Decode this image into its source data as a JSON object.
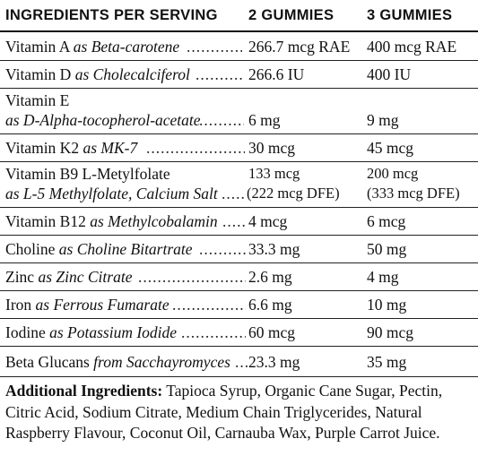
{
  "header": {
    "col1": "INGREDIENTS PER SERVING",
    "col2": "2 GUMMIES",
    "col3": "3 GUMMIES"
  },
  "rows": [
    {
      "name": "Vitamin A",
      "source": "as Beta-carotene",
      "v2": "266.7 mcg RAE",
      "v3": "400 mcg RAE"
    },
    {
      "name": "Vitamin D",
      "source": "as Cholecalciferol",
      "v2": "266.6 IU",
      "v3": "400 IU"
    },
    {
      "name": "Vitamin E",
      "source": "as D-Alpha-tocopherol-acetate",
      "v2": "6 mg",
      "v3": "9 mg"
    },
    {
      "name": "Vitamin K2",
      "source": "as MK-7",
      "v2": "30 mcg",
      "v3": "45 mcg"
    },
    {
      "name": "Vitamin B9 L-Metylfolate",
      "source": "as L-5 Methylfolate, Calcium Salt",
      "v2": "133 mcg",
      "v2b": "(222 mcg DFE)",
      "v3": "200 mcg",
      "v3b": "(333 mcg DFE)"
    },
    {
      "name": "Vitamin B12",
      "source": "as Methylcobalamin",
      "v2": "4 mcg",
      "v3": "6 mcg"
    },
    {
      "name": "Choline",
      "source": "as Choline Bitartrate",
      "v2": "33.3 mg",
      "v3": "50 mg"
    },
    {
      "name": "Zinc",
      "source": "as Zinc Citrate",
      "v2": "2.6 mg",
      "v3": "4 mg"
    },
    {
      "name": "Iron",
      "source": "as Ferrous Fumarate",
      "v2": "6.6 mg",
      "v3": "10 mg"
    },
    {
      "name": "Iodine",
      "source": "as Potassium Iodide",
      "v2": "60 mcg",
      "v3": "90 mcg"
    },
    {
      "name": "Beta Glucans",
      "source": "from Sacchayromyces",
      "v2": "23.3 mg",
      "v3": "35 mg"
    }
  ],
  "additional": {
    "label": "Additional Ingredients:",
    "text": "Tapioca Syrup, Organic Cane Sugar, Pectin, Citric Acid, Sodium Citrate, Medium Chain Triglycerides, Natural Raspberry Flavour, Coconut Oil, Carnauba Wax, Purple Carrot Juice."
  }
}
